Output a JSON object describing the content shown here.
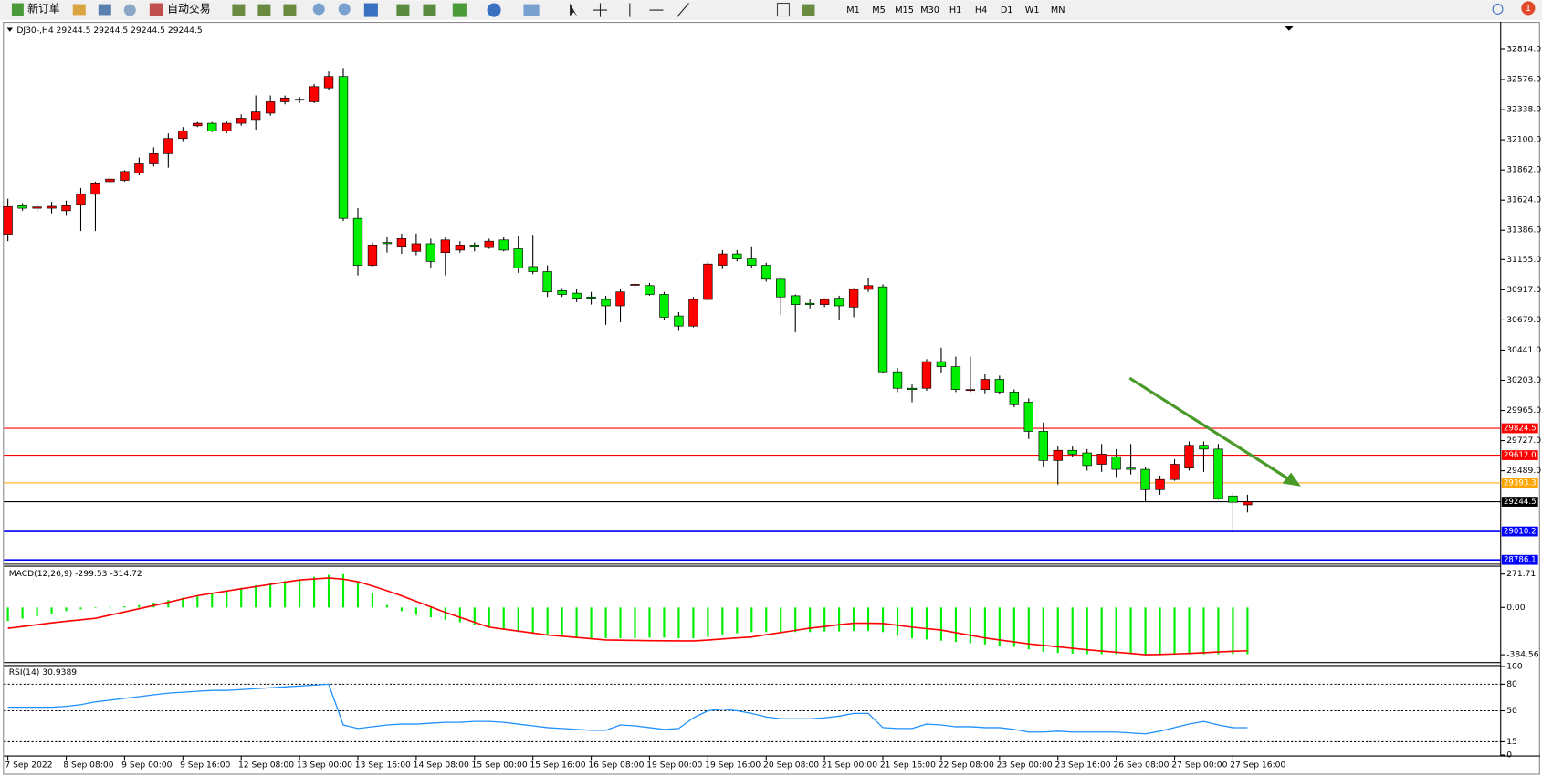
{
  "toolbar": {
    "new_order": "新订单",
    "auto_trading": "自动交易",
    "timeframes": [
      "M1",
      "M5",
      "M15",
      "M30",
      "H1",
      "H4",
      "D1",
      "W1",
      "MN"
    ],
    "notifications": "1"
  },
  "chart_data": [
    {
      "type": "candlestick",
      "title": "DJ30-,H4  29244.5 29244.5 29244.5 29244.5",
      "categories": [
        "7 Sep 2022",
        null,
        null,
        null,
        "8 Sep 08:00",
        null,
        null,
        null,
        "9 Sep 00:00",
        null,
        null,
        null,
        "9 Sep 16:00",
        null,
        null,
        null,
        "12 Sep 08:00",
        null,
        null,
        null,
        "13 Sep 00:00",
        null,
        null,
        null,
        "13 Sep 16:00",
        null,
        null,
        null,
        "14 Sep 08:00",
        null,
        null,
        null,
        "15 Sep 00:00",
        null,
        null,
        null,
        "15 Sep 16:00",
        null,
        null,
        null,
        "16 Sep 08:00",
        null,
        null,
        null,
        "19 Sep 00:00",
        null,
        null,
        null,
        "19 Sep 16:00",
        null,
        null,
        null,
        "20 Sep 08:00",
        null,
        null,
        null,
        "21 Sep 00:00",
        null,
        null,
        null,
        "21 Sep 16:00",
        null,
        null,
        null,
        "22 Sep 08:00",
        null,
        null,
        null,
        "23 Sep 00:00",
        null,
        null,
        null,
        "23 Sep 16:00",
        null,
        null,
        null,
        "26 Sep 08:00",
        null,
        null,
        null,
        "27 Sep 00:00",
        null,
        null,
        null,
        "27 Sep 16:00",
        null
      ],
      "open": [
        31355,
        31580,
        31560,
        31560,
        31540,
        31590,
        31670,
        31770,
        31780,
        31840,
        31910,
        31990,
        32110,
        32210,
        32230,
        32170,
        32230,
        32260,
        32310,
        32400,
        32420,
        32400,
        32510,
        32600,
        31480,
        31110,
        31290,
        31260,
        31220,
        31280,
        31210,
        31230,
        31270,
        31250,
        31310,
        31240,
        31100,
        31060,
        30910,
        30890,
        30860,
        30840,
        30790,
        30960,
        30950,
        30880,
        30710,
        30630,
        30840,
        31110,
        31200,
        31160,
        31110,
        31000,
        30870,
        30810,
        30800,
        30850,
        30780,
        30920,
        30940,
        30270,
        30140,
        30140,
        30350,
        30310,
        30130,
        30130,
        30210,
        30110,
        30030,
        29800,
        29570,
        29650,
        29630,
        29540,
        29600,
        29510,
        29500,
        29340,
        29420,
        29510,
        29690,
        29660,
        29290,
        29220
      ],
      "high": [
        31635,
        31600,
        31600,
        31610,
        31620,
        31720,
        31770,
        31810,
        31860,
        31960,
        32040,
        32150,
        32200,
        32240,
        32240,
        32250,
        32300,
        32450,
        32450,
        32450,
        32440,
        32540,
        32640,
        32660,
        31560,
        31290,
        31330,
        31360,
        31360,
        31320,
        31330,
        31300,
        31290,
        31320,
        31330,
        31340,
        31350,
        31110,
        30930,
        30920,
        30900,
        30870,
        30920,
        30980,
        30970,
        30900,
        30740,
        30860,
        31140,
        31230,
        31230,
        31260,
        31130,
        31010,
        30880,
        30840,
        30850,
        30870,
        30930,
        31010,
        30960,
        30300,
        30170,
        30370,
        30460,
        30390,
        30390,
        30250,
        30240,
        30130,
        30060,
        29870,
        29680,
        29680,
        29660,
        29700,
        29660,
        29700,
        29520,
        29450,
        29580,
        29720,
        29720,
        29700,
        29320,
        29300
      ],
      "low": [
        31300,
        31540,
        31530,
        31520,
        31500,
        31380,
        31380,
        31760,
        31770,
        31820,
        31890,
        31880,
        32090,
        32200,
        32160,
        32150,
        32210,
        32180,
        32290,
        32380,
        32390,
        32390,
        32490,
        31460,
        31030,
        31100,
        31210,
        31200,
        31190,
        31090,
        31030,
        31210,
        31220,
        31240,
        31220,
        31050,
        31040,
        30860,
        30860,
        30820,
        30800,
        30640,
        30660,
        30930,
        30870,
        30680,
        30600,
        30620,
        30830,
        31080,
        31140,
        31090,
        30980,
        30720,
        30580,
        30770,
        30780,
        30680,
        30700,
        30900,
        30260,
        30110,
        30030,
        30120,
        30260,
        30110,
        30110,
        30100,
        30090,
        29990,
        29740,
        29520,
        29380,
        29600,
        29490,
        29480,
        29440,
        29460,
        29240,
        29300,
        29410,
        29490,
        29480,
        29260,
        29000,
        29160
      ],
      "close": [
        31573,
        31560,
        31570,
        31575,
        31580,
        31670,
        31760,
        31790,
        31850,
        31910,
        31990,
        32110,
        32170,
        32230,
        32170,
        32230,
        32270,
        32320,
        32400,
        32430,
        32420,
        32520,
        32600,
        31480,
        31110,
        31270,
        31280,
        31320,
        31280,
        31140,
        31310,
        31270,
        31260,
        31300,
        31230,
        31090,
        31060,
        30900,
        30880,
        30850,
        30850,
        30790,
        30900,
        30960,
        30880,
        30700,
        30630,
        30840,
        31120,
        31200,
        31160,
        31110,
        31000,
        30860,
        30800,
        30800,
        30840,
        30790,
        30920,
        30950,
        30270,
        30140,
        30130,
        30350,
        30310,
        30130,
        30130,
        30210,
        30110,
        30010,
        29800,
        29570,
        29650,
        29620,
        29530,
        29620,
        29500,
        29500,
        29340,
        29420,
        29540,
        29690,
        29660,
        29270,
        29240,
        29244.5
      ],
      "up_color": "#ff0000",
      "down_color": "#00ee00",
      "ylim": [
        28760,
        33030
      ],
      "yticks": [
        {
          "value": 32814,
          "label": "32814.0"
        },
        {
          "value": 32576,
          "label": "32576.0"
        },
        {
          "value": 32338,
          "label": "32338.0"
        },
        {
          "value": 32100,
          "label": "32100.0"
        },
        {
          "value": 31862,
          "label": "31862.0"
        },
        {
          "value": 31624,
          "label": "31624.0"
        },
        {
          "value": 31386,
          "label": "31386.0"
        },
        {
          "value": 31155,
          "label": "31155.0"
        },
        {
          "value": 30917,
          "label": "30917.0"
        },
        {
          "value": 30679,
          "label": "30679.0"
        },
        {
          "value": 30441,
          "label": "30441.0"
        },
        {
          "value": 30203,
          "label": "30203.0"
        },
        {
          "value": 29965,
          "label": "29965.0"
        },
        {
          "value": 29727,
          "label": "29727.0"
        },
        {
          "value": 29489,
          "label": "29489.0"
        }
      ],
      "levels": [
        {
          "value": 29824.5,
          "color": "#ff0000"
        },
        {
          "value": 29612,
          "label": "29612.0",
          "color": "#ff0000"
        },
        {
          "value": 29393.3,
          "color": "#ffa500"
        },
        {
          "value": 29244.5,
          "color": "#000000"
        },
        {
          "value": 29010.2,
          "color": "#0000ff"
        },
        {
          "value": 28786.1,
          "color": "#0000ff"
        }
      ]
    },
    {
      "type": "macd",
      "title": "MACD(12,26,9) -299.53 -314.72",
      "histogram": {
        "color": "#00ee00",
        "values": [
          -110,
          -90,
          -70,
          -50,
          -30,
          -15,
          -5,
          5,
          10,
          20,
          40,
          60,
          80,
          100,
          120,
          140,
          160,
          180,
          200,
          215,
          230,
          250,
          265,
          271,
          200,
          120,
          20,
          -30,
          -60,
          -80,
          -100,
          -120,
          -140,
          -160,
          -180,
          -200,
          -210,
          -220,
          -230,
          -240,
          -250,
          -250,
          -250,
          -250,
          -245,
          -245,
          -250,
          -250,
          -240,
          -220,
          -210,
          -200,
          -200,
          -200,
          -200,
          -200,
          -195,
          -195,
          -190,
          -190,
          -200,
          -230,
          -250,
          -260,
          -270,
          -280,
          -290,
          -300,
          -310,
          -320,
          -340,
          -360,
          -370,
          -375,
          -380,
          -380,
          -380,
          -380,
          -384,
          -384,
          -380,
          -380,
          -380,
          -380,
          -380,
          -380
        ]
      },
      "signal": {
        "color": "#ff0000",
        "values": [
          -170,
          -155,
          -140,
          -125,
          -112,
          -100,
          -88,
          -62,
          -36,
          -10,
          16,
          42,
          70,
          96,
          115,
          134,
          152,
          170,
          188,
          206,
          224,
          232,
          240,
          230,
          210,
          175,
          136,
          95,
          50,
          5,
          -40,
          -80,
          -120,
          -160,
          -176,
          -192,
          -208,
          -224,
          -234,
          -244,
          -254,
          -264,
          -266,
          -268,
          -270,
          -271,
          -272,
          -272,
          -265,
          -256,
          -248,
          -240,
          -222,
          -204,
          -186,
          -168,
          -155,
          -140,
          -128,
          -128,
          -130,
          -145,
          -160,
          -172,
          -184,
          -205,
          -226,
          -248,
          -264,
          -280,
          -296,
          -308,
          -320,
          -332,
          -344,
          -354,
          -364,
          -374,
          -384,
          -382,
          -378,
          -374,
          -368,
          -362,
          -356,
          -352
        ]
      },
      "ylim": [
        -440,
        336
      ],
      "yticks": [
        271.71,
        {
          "value": 0,
          "label": "0.00"
        },
        -384.56
      ]
    },
    {
      "type": "rsi",
      "title": "RSI(14) 30.9389",
      "color": "#1e90ff",
      "values": [
        54,
        54,
        54,
        54,
        55,
        57,
        60,
        62,
        64,
        66,
        68,
        70,
        71,
        72,
        73,
        73,
        74,
        75,
        76,
        77,
        78,
        79,
        80,
        34,
        30,
        32,
        34,
        35,
        35,
        36,
        37,
        37,
        38,
        38,
        37,
        35,
        33,
        31,
        30,
        29,
        28,
        28,
        34,
        33,
        31,
        29,
        30,
        42,
        50,
        52,
        50,
        47,
        43,
        41,
        41,
        41,
        42,
        44,
        47,
        47,
        31,
        30,
        30,
        35,
        34,
        32,
        32,
        31,
        31,
        29,
        26,
        26,
        27,
        26,
        26,
        26,
        26,
        25,
        24,
        27,
        31,
        35,
        38,
        34,
        31,
        30.9389
      ],
      "ylim": [
        0,
        100
      ],
      "yticks": [
        100,
        80,
        50,
        15,
        0
      ],
      "levels": [
        80,
        50,
        15
      ]
    }
  ]
}
